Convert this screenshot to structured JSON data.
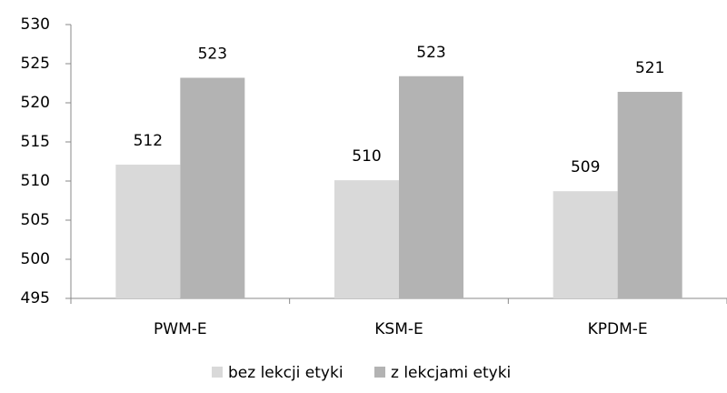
{
  "chart_data": {
    "type": "bar",
    "categories": [
      "PWM-E",
      "KSM-E",
      "KPDM-E"
    ],
    "series": [
      {
        "name": "bez lekcji etyki",
        "color": "#d9d9d9",
        "values": [
          512.1,
          510.1,
          508.7
        ],
        "value_labels": [
          "512",
          "510",
          "509"
        ]
      },
      {
        "name": "z lekcjami etyki",
        "color": "#b3b3b3",
        "values": [
          523.2,
          523.4,
          521.4
        ],
        "value_labels": [
          "523",
          "523",
          "521"
        ]
      }
    ],
    "ylim": [
      495,
      530
    ],
    "yticks": [
      495,
      500,
      505,
      510,
      515,
      520,
      525,
      530
    ],
    "grid": false,
    "legend": "bottom"
  }
}
